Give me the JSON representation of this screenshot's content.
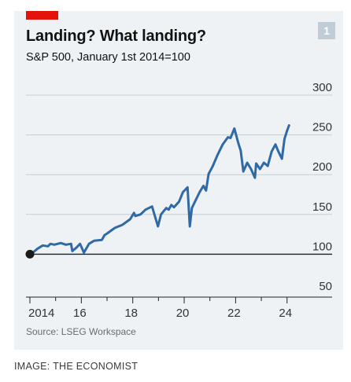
{
  "header": {
    "badge": "1",
    "title": "Landing? What landing?",
    "subtitle": "S&P 500, January 1st 2014=100"
  },
  "source": "Source: LSEG Workspace",
  "credit": "IMAGE: THE ECONOMIST",
  "colors": {
    "line": "#2f6aa6",
    "tag": "#e3120b",
    "panel": "#eef2f4",
    "grid": "#c5cdd2",
    "baseline": "#222222"
  },
  "chart_data": {
    "type": "line",
    "title": "Landing? What landing?",
    "subtitle": "S&P 500, January 1st 2014=100",
    "x_tick_labels": [
      "2014",
      "16",
      "18",
      "20",
      "22",
      "24"
    ],
    "y_ticks": [
      50,
      100,
      150,
      200,
      250,
      300
    ],
    "ylim": [
      50,
      300
    ],
    "xlim": [
      2014,
      2024.1
    ],
    "grid": "horizontal",
    "baseline_value": 100,
    "start_marker": {
      "x": 2014.0,
      "y": 100
    },
    "series": [
      {
        "x": [
          2014.0,
          2014.15,
          2014.3,
          2014.5,
          2014.7,
          2014.8,
          2014.95,
          2015.2,
          2015.4,
          2015.6,
          2015.65,
          2015.8,
          2015.95,
          2016.1,
          2016.3,
          2016.5,
          2016.8,
          2016.9,
          2017.0,
          2017.3,
          2017.6,
          2017.9,
          2018.05,
          2018.1,
          2018.3,
          2018.5,
          2018.75,
          2018.98,
          2019.1,
          2019.3,
          2019.4,
          2019.5,
          2019.6,
          2019.8,
          2019.95,
          2020.13,
          2020.22,
          2020.3,
          2020.45,
          2020.6,
          2020.75,
          2020.85,
          2020.95,
          2021.1,
          2021.3,
          2021.5,
          2021.7,
          2021.8,
          2021.95,
          2022.1,
          2022.2,
          2022.3,
          2022.45,
          2022.6,
          2022.75,
          2022.8,
          2022.95,
          2023.1,
          2023.25,
          2023.4,
          2023.55,
          2023.65,
          2023.8,
          2023.9,
          2024.0,
          2024.08
        ],
        "values": [
          100,
          103,
          107,
          111,
          110,
          113,
          112,
          114,
          112,
          113,
          104,
          108,
          113,
          102,
          113,
          117,
          118,
          124,
          126,
          133,
          137,
          144,
          152,
          148,
          150,
          156,
          160,
          135,
          150,
          158,
          156,
          162,
          159,
          166,
          178,
          184,
          135,
          158,
          168,
          178,
          186,
          180,
          201,
          210,
          225,
          238,
          247,
          246,
          258,
          240,
          230,
          204,
          215,
          207,
          196,
          214,
          207,
          215,
          211,
          229,
          238,
          230,
          220,
          245,
          255,
          262
        ]
      }
    ]
  }
}
